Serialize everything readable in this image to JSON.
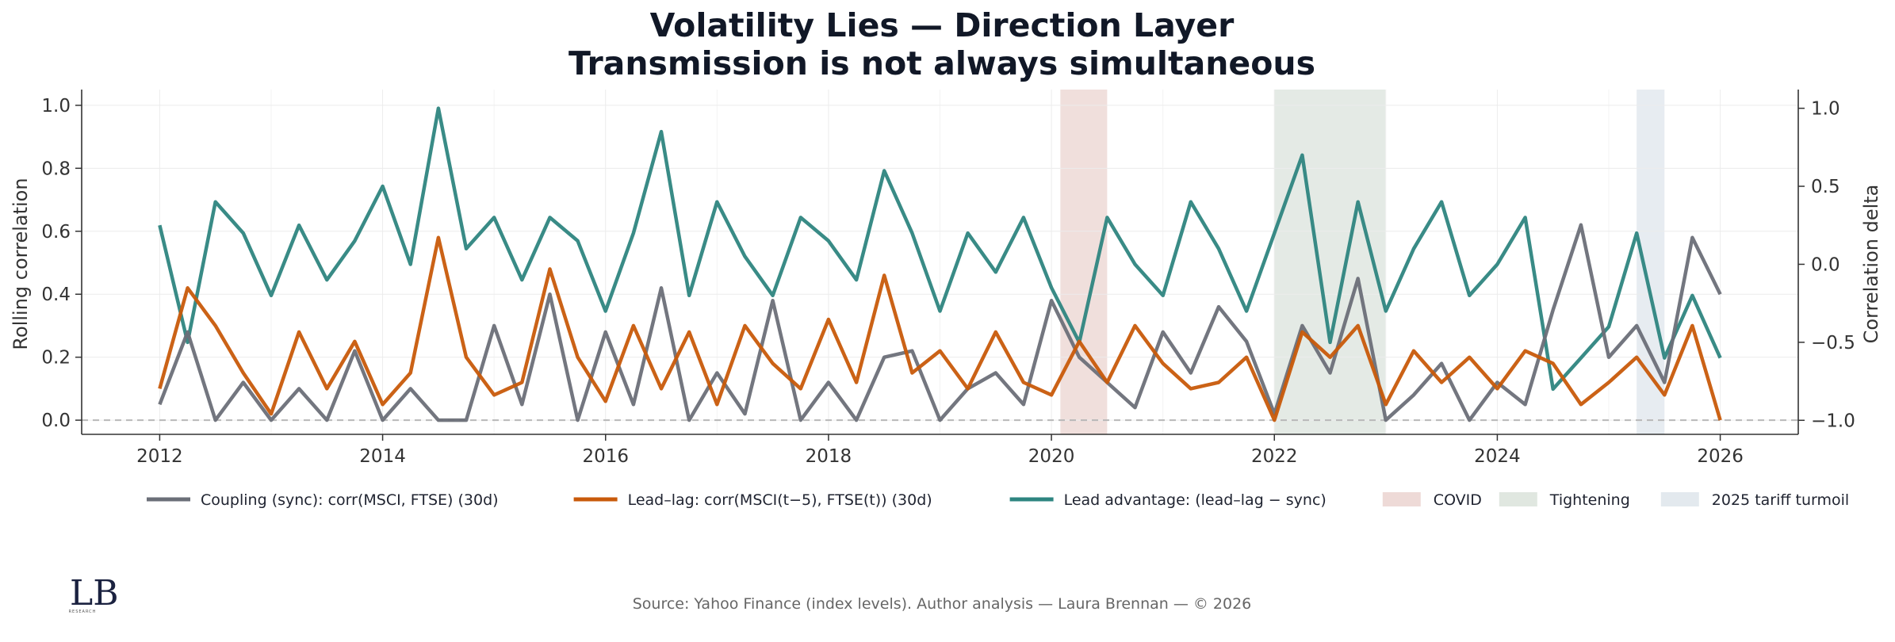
{
  "chart_data": {
    "type": "line",
    "title": "Volatility Lies — Direction Layer",
    "subtitle": "Transmission is not always simultaneous",
    "ylabel": "Rolling correlation",
    "ylabel_right": "Correlation delta",
    "xlim": [
      2011.3,
      2026.7
    ],
    "ylim": [
      -0.045,
      1.05
    ],
    "ylim_right": [
      -1.09,
      1.12
    ],
    "x_ticks": [
      2012,
      2014,
      2016,
      2018,
      2020,
      2022,
      2024,
      2026
    ],
    "x_tick_labels": [
      "2012",
      "2014",
      "2016",
      "2018",
      "2020",
      "2022",
      "2024",
      "2026"
    ],
    "y_ticks": [
      0.0,
      0.2,
      0.4,
      0.6,
      0.8,
      1.0
    ],
    "y_tick_labels": [
      "0.0",
      "0.2",
      "0.4",
      "0.6",
      "0.8",
      "1.0"
    ],
    "y_ticks_right": [
      -1.0,
      -0.5,
      0.0,
      0.5,
      1.0
    ],
    "y_tick_labels_right": [
      "−1.0",
      "−0.5",
      "0.0",
      "0.5",
      "1.0"
    ],
    "reference_line": 0.0,
    "grid": true,
    "legend_position": "bottom",
    "shaded_regions": [
      {
        "name": "COVID",
        "start": 2020.08,
        "end": 2020.5,
        "color": "#c98b82"
      },
      {
        "name": "Tightening",
        "start": 2022.0,
        "end": 2023.0,
        "color": "#9fb3a0"
      },
      {
        "name": "2025 tariff turmoil",
        "start": 2025.25,
        "end": 2025.5,
        "color": "#a9bccb"
      }
    ],
    "series": [
      {
        "name": "Coupling (sync): corr(MSCI, FTSE) (30d)",
        "axis": "left",
        "color": "#6b6f78",
        "x": [
          2012.0,
          2012.25,
          2012.5,
          2012.75,
          2013.0,
          2013.25,
          2013.5,
          2013.75,
          2014.0,
          2014.25,
          2014.5,
          2014.75,
          2015.0,
          2015.25,
          2015.5,
          2015.75,
          2016.0,
          2016.25,
          2016.5,
          2016.75,
          2017.0,
          2017.25,
          2017.5,
          2017.75,
          2018.0,
          2018.25,
          2018.5,
          2018.75,
          2019.0,
          2019.25,
          2019.5,
          2019.75,
          2020.0,
          2020.25,
          2020.5,
          2020.75,
          2021.0,
          2021.25,
          2021.5,
          2021.75,
          2022.0,
          2022.25,
          2022.5,
          2022.75,
          2023.0,
          2023.25,
          2023.5,
          2023.75,
          2024.0,
          2024.25,
          2024.5,
          2024.75,
          2025.0,
          2025.25,
          2025.5,
          2025.75,
          2026.0
        ],
        "values": [
          0.05,
          0.28,
          0.0,
          0.12,
          0.0,
          0.1,
          0.0,
          0.22,
          0.0,
          0.1,
          0.0,
          0.0,
          0.3,
          0.05,
          0.4,
          0.0,
          0.28,
          0.05,
          0.42,
          0.0,
          0.15,
          0.02,
          0.38,
          0.0,
          0.12,
          0.0,
          0.2,
          0.22,
          0.0,
          0.1,
          0.15,
          0.05,
          0.38,
          0.2,
          0.12,
          0.04,
          0.28,
          0.15,
          0.36,
          0.25,
          0.02,
          0.3,
          0.15,
          0.45,
          0.0,
          0.08,
          0.18,
          0.0,
          0.12,
          0.05,
          0.35,
          0.62,
          0.2,
          0.3,
          0.12,
          0.58,
          0.4
        ]
      },
      {
        "name": "Lead–lag: corr(MSCI(t−5), FTSE(t)) (30d)",
        "axis": "left",
        "color": "#c85a0a",
        "x": [
          2012.0,
          2012.25,
          2012.5,
          2012.75,
          2013.0,
          2013.25,
          2013.5,
          2013.75,
          2014.0,
          2014.25,
          2014.5,
          2014.75,
          2015.0,
          2015.25,
          2015.5,
          2015.75,
          2016.0,
          2016.25,
          2016.5,
          2016.75,
          2017.0,
          2017.25,
          2017.5,
          2017.75,
          2018.0,
          2018.25,
          2018.5,
          2018.75,
          2019.0,
          2019.25,
          2019.5,
          2019.75,
          2020.0,
          2020.25,
          2020.5,
          2020.75,
          2021.0,
          2021.25,
          2021.5,
          2021.75,
          2022.0,
          2022.25,
          2022.5,
          2022.75,
          2023.0,
          2023.25,
          2023.5,
          2023.75,
          2024.0,
          2024.25,
          2024.5,
          2024.75,
          2025.0,
          2025.25,
          2025.5,
          2025.75,
          2026.0
        ],
        "values": [
          0.1,
          0.42,
          0.3,
          0.15,
          0.02,
          0.28,
          0.1,
          0.25,
          0.05,
          0.15,
          0.58,
          0.2,
          0.08,
          0.12,
          0.48,
          0.2,
          0.06,
          0.3,
          0.1,
          0.28,
          0.05,
          0.3,
          0.18,
          0.1,
          0.32,
          0.12,
          0.46,
          0.15,
          0.22,
          0.1,
          0.28,
          0.12,
          0.08,
          0.25,
          0.12,
          0.3,
          0.18,
          0.1,
          0.12,
          0.2,
          0.0,
          0.28,
          0.2,
          0.3,
          0.05,
          0.22,
          0.12,
          0.2,
          0.1,
          0.22,
          0.18,
          0.05,
          0.12,
          0.2,
          0.08,
          0.3,
          0.0
        ]
      },
      {
        "name": "Lead advantage: (lead–lag − sync)",
        "axis": "right",
        "color": "#2e8580",
        "x": [
          2012.0,
          2012.25,
          2012.5,
          2012.75,
          2013.0,
          2013.25,
          2013.5,
          2013.75,
          2014.0,
          2014.25,
          2014.5,
          2014.75,
          2015.0,
          2015.25,
          2015.5,
          2015.75,
          2016.0,
          2016.25,
          2016.5,
          2016.75,
          2017.0,
          2017.25,
          2017.5,
          2017.75,
          2018.0,
          2018.25,
          2018.5,
          2018.75,
          2019.0,
          2019.25,
          2019.5,
          2019.75,
          2020.0,
          2020.25,
          2020.5,
          2020.75,
          2021.0,
          2021.25,
          2021.5,
          2021.75,
          2022.0,
          2022.25,
          2022.5,
          2022.75,
          2023.0,
          2023.25,
          2023.5,
          2023.75,
          2024.0,
          2024.25,
          2024.5,
          2024.75,
          2025.0,
          2025.25,
          2025.5,
          2025.75,
          2026.0
        ],
        "values": [
          0.25,
          -0.5,
          0.4,
          0.2,
          -0.2,
          0.25,
          -0.1,
          0.15,
          0.5,
          0.0,
          1.0,
          0.1,
          0.3,
          -0.1,
          0.3,
          0.15,
          -0.3,
          0.2,
          0.85,
          -0.2,
          0.4,
          0.05,
          -0.2,
          0.3,
          0.15,
          -0.1,
          0.6,
          0.2,
          -0.3,
          0.2,
          -0.05,
          0.3,
          -0.15,
          -0.5,
          0.3,
          0.0,
          -0.2,
          0.4,
          0.1,
          -0.3,
          0.2,
          0.7,
          -0.5,
          0.4,
          -0.3,
          0.1,
          0.4,
          -0.2,
          0.0,
          0.3,
          -0.8,
          -0.6,
          -0.4,
          0.2,
          -0.6,
          -0.2,
          -0.6
        ]
      }
    ]
  },
  "footer": {
    "source": "Source: Yahoo Finance (index levels). Author analysis — Laura Brennan — © 2026",
    "logo_text": "LB",
    "logo_sub": "RESEARCH"
  }
}
